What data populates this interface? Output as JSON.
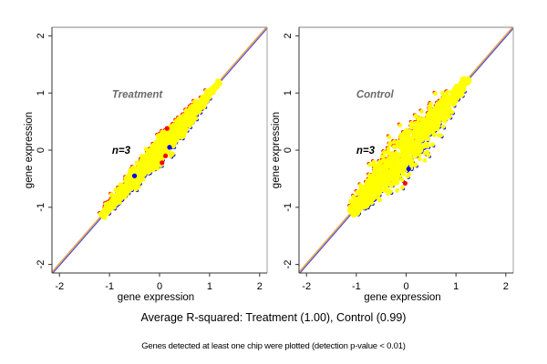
{
  "figure": {
    "main_caption": "Average R-squared: Treatment (1.00), Control (0.99)",
    "sub_caption": "Genes detected at least one chip were plotted (detection p-value < 0.01)"
  },
  "colors": {
    "points_main": "#ffff00",
    "points_up": "#ff0000",
    "points_down": "#0000ff",
    "diagonal_orange": "#e8a23a",
    "diagonal_blue": "#4a4adf",
    "panel_label": "#6b6b6b",
    "axis": "#333333"
  },
  "chart_data": [
    {
      "type": "scatter",
      "title": "Treatment",
      "annotation": "n=3",
      "xlabel": "gene expression",
      "ylabel": "gene expression",
      "xlim": [
        -2.15,
        2.15
      ],
      "ylim": [
        -2.15,
        2.15
      ],
      "xticks": [
        -2,
        -1,
        0,
        1,
        2
      ],
      "yticks": [
        -2,
        -1,
        0,
        1,
        2
      ],
      "reference_line": "y = x",
      "cloud": {
        "x_range": [
          -1.15,
          1.2
        ],
        "spread": 0.05,
        "approximate": true
      },
      "outliers": [
        {
          "x": 0.15,
          "y": 0.38,
          "color": "red"
        },
        {
          "x": 0.05,
          "y": -0.22,
          "color": "red"
        },
        {
          "x": 0.12,
          "y": -0.1,
          "color": "red"
        },
        {
          "x": -0.5,
          "y": -0.45,
          "color": "blue"
        },
        {
          "x": 0.2,
          "y": 0.05,
          "color": "blue"
        }
      ]
    },
    {
      "type": "scatter",
      "title": "Control",
      "annotation": "n=3",
      "xlabel": "gene expression",
      "ylabel": "gene expression",
      "xlim": [
        -2.15,
        2.15
      ],
      "ylim": [
        -2.15,
        2.15
      ],
      "xticks": [
        -2,
        -1,
        0,
        1,
        2
      ],
      "yticks": [
        -2,
        -1,
        0,
        1,
        2
      ],
      "reference_line": "y = x",
      "cloud": {
        "x_range": [
          -1.1,
          1.25
        ],
        "spread": 0.09,
        "approximate": true
      },
      "outliers": [
        {
          "x": -0.02,
          "y": -0.58,
          "color": "red"
        },
        {
          "x": 0.05,
          "y": -0.33,
          "color": "blue"
        },
        {
          "x": -0.32,
          "y": 0.12,
          "color": "yellow"
        },
        {
          "x": -0.18,
          "y": -0.57,
          "color": "yellow"
        }
      ]
    }
  ]
}
